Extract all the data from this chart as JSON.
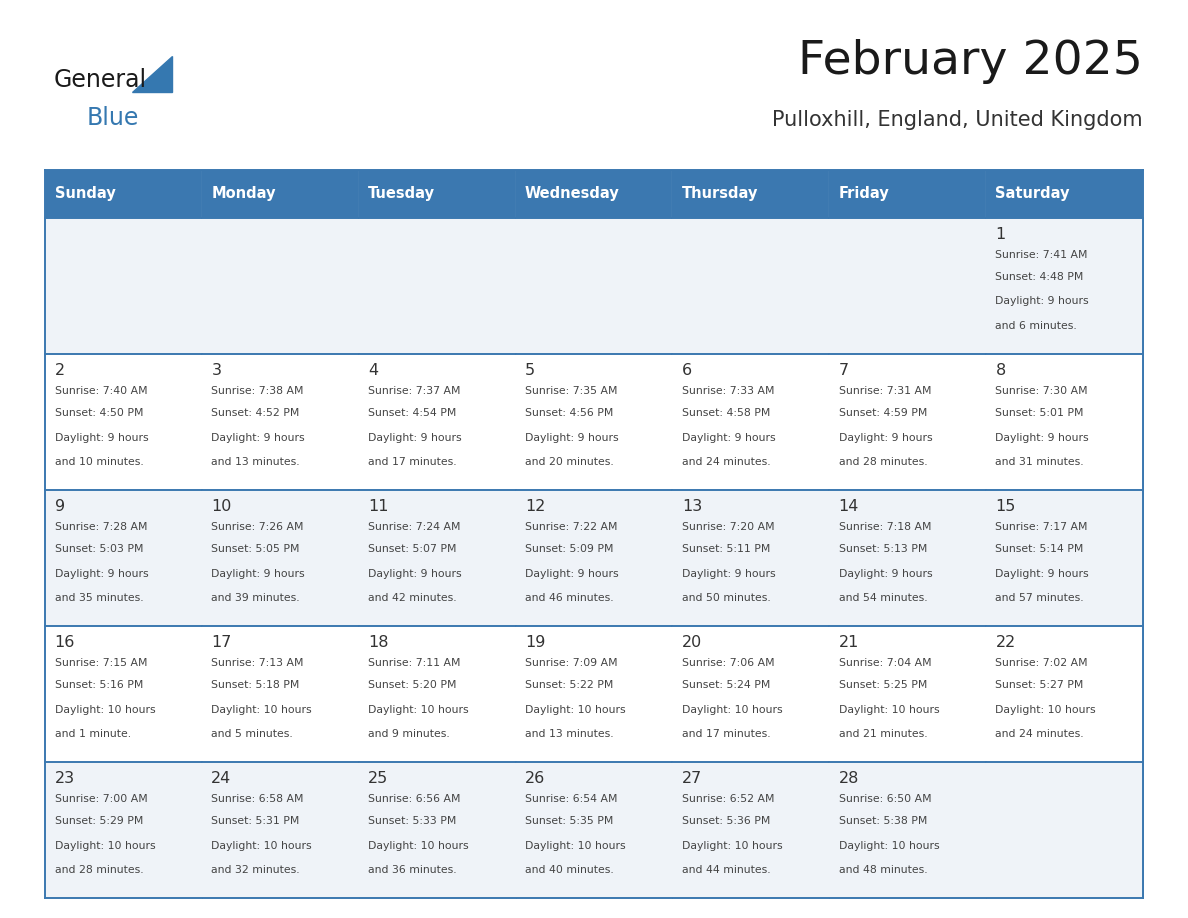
{
  "title": "February 2025",
  "subtitle": "Pulloxhill, England, United Kingdom",
  "header_bg_color": "#3b78b0",
  "header_text_color": "#ffffff",
  "header_days": [
    "Sunday",
    "Monday",
    "Tuesday",
    "Wednesday",
    "Thursday",
    "Friday",
    "Saturday"
  ],
  "cell_bg_row0": "#eff3f8",
  "cell_bg_row1": "#ffffff",
  "cell_bg_row2": "#eff3f8",
  "cell_bg_row3": "#ffffff",
  "cell_bg_row4": "#eff3f8",
  "cell_border_color": "#3b78b0",
  "day_number_color": "#333333",
  "info_text_color": "#444444",
  "title_color": "#1a1a1a",
  "subtitle_color": "#333333",
  "logo_general_color": "#1a1a1a",
  "logo_blue_color": "#3578b0",
  "calendar_data": [
    [
      null,
      null,
      null,
      null,
      null,
      null,
      {
        "day": "1",
        "sunrise": "7:41 AM",
        "sunset": "4:48 PM",
        "daylight": "9 hours\nand 6 minutes."
      }
    ],
    [
      {
        "day": "2",
        "sunrise": "7:40 AM",
        "sunset": "4:50 PM",
        "daylight": "9 hours\nand 10 minutes."
      },
      {
        "day": "3",
        "sunrise": "7:38 AM",
        "sunset": "4:52 PM",
        "daylight": "9 hours\nand 13 minutes."
      },
      {
        "day": "4",
        "sunrise": "7:37 AM",
        "sunset": "4:54 PM",
        "daylight": "9 hours\nand 17 minutes."
      },
      {
        "day": "5",
        "sunrise": "7:35 AM",
        "sunset": "4:56 PM",
        "daylight": "9 hours\nand 20 minutes."
      },
      {
        "day": "6",
        "sunrise": "7:33 AM",
        "sunset": "4:58 PM",
        "daylight": "9 hours\nand 24 minutes."
      },
      {
        "day": "7",
        "sunrise": "7:31 AM",
        "sunset": "4:59 PM",
        "daylight": "9 hours\nand 28 minutes."
      },
      {
        "day": "8",
        "sunrise": "7:30 AM",
        "sunset": "5:01 PM",
        "daylight": "9 hours\nand 31 minutes."
      }
    ],
    [
      {
        "day": "9",
        "sunrise": "7:28 AM",
        "sunset": "5:03 PM",
        "daylight": "9 hours\nand 35 minutes."
      },
      {
        "day": "10",
        "sunrise": "7:26 AM",
        "sunset": "5:05 PM",
        "daylight": "9 hours\nand 39 minutes."
      },
      {
        "day": "11",
        "sunrise": "7:24 AM",
        "sunset": "5:07 PM",
        "daylight": "9 hours\nand 42 minutes."
      },
      {
        "day": "12",
        "sunrise": "7:22 AM",
        "sunset": "5:09 PM",
        "daylight": "9 hours\nand 46 minutes."
      },
      {
        "day": "13",
        "sunrise": "7:20 AM",
        "sunset": "5:11 PM",
        "daylight": "9 hours\nand 50 minutes."
      },
      {
        "day": "14",
        "sunrise": "7:18 AM",
        "sunset": "5:13 PM",
        "daylight": "9 hours\nand 54 minutes."
      },
      {
        "day": "15",
        "sunrise": "7:17 AM",
        "sunset": "5:14 PM",
        "daylight": "9 hours\nand 57 minutes."
      }
    ],
    [
      {
        "day": "16",
        "sunrise": "7:15 AM",
        "sunset": "5:16 PM",
        "daylight": "10 hours\nand 1 minute."
      },
      {
        "day": "17",
        "sunrise": "7:13 AM",
        "sunset": "5:18 PM",
        "daylight": "10 hours\nand 5 minutes."
      },
      {
        "day": "18",
        "sunrise": "7:11 AM",
        "sunset": "5:20 PM",
        "daylight": "10 hours\nand 9 minutes."
      },
      {
        "day": "19",
        "sunrise": "7:09 AM",
        "sunset": "5:22 PM",
        "daylight": "10 hours\nand 13 minutes."
      },
      {
        "day": "20",
        "sunrise": "7:06 AM",
        "sunset": "5:24 PM",
        "daylight": "10 hours\nand 17 minutes."
      },
      {
        "day": "21",
        "sunrise": "7:04 AM",
        "sunset": "5:25 PM",
        "daylight": "10 hours\nand 21 minutes."
      },
      {
        "day": "22",
        "sunrise": "7:02 AM",
        "sunset": "5:27 PM",
        "daylight": "10 hours\nand 24 minutes."
      }
    ],
    [
      {
        "day": "23",
        "sunrise": "7:00 AM",
        "sunset": "5:29 PM",
        "daylight": "10 hours\nand 28 minutes."
      },
      {
        "day": "24",
        "sunrise": "6:58 AM",
        "sunset": "5:31 PM",
        "daylight": "10 hours\nand 32 minutes."
      },
      {
        "day": "25",
        "sunrise": "6:56 AM",
        "sunset": "5:33 PM",
        "daylight": "10 hours\nand 36 minutes."
      },
      {
        "day": "26",
        "sunrise": "6:54 AM",
        "sunset": "5:35 PM",
        "daylight": "10 hours\nand 40 minutes."
      },
      {
        "day": "27",
        "sunrise": "6:52 AM",
        "sunset": "5:36 PM",
        "daylight": "10 hours\nand 44 minutes."
      },
      {
        "day": "28",
        "sunrise": "6:50 AM",
        "sunset": "5:38 PM",
        "daylight": "10 hours\nand 48 minutes."
      },
      null
    ]
  ]
}
